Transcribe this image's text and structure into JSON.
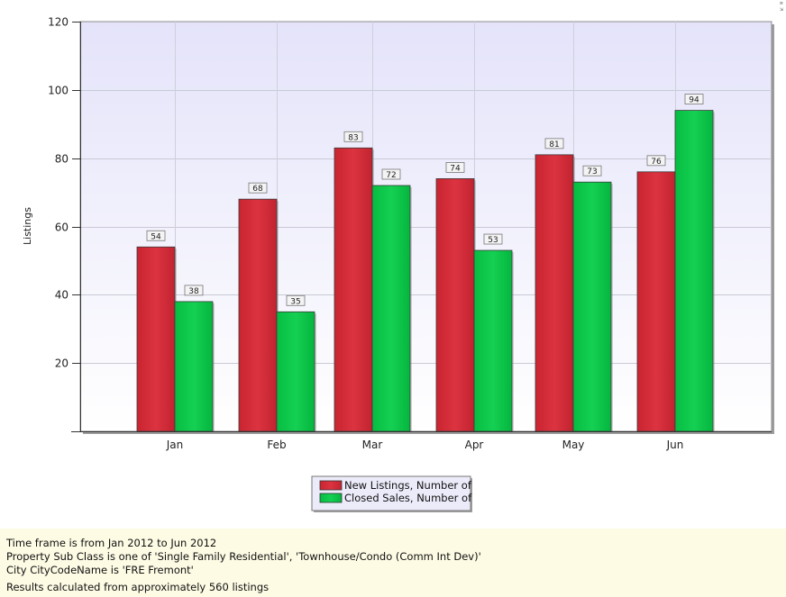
{
  "chart_data": {
    "type": "bar",
    "title": "",
    "xlabel": "",
    "ylabel": "Listings",
    "ylim": [
      0,
      120
    ],
    "yticks": [
      20,
      40,
      60,
      80,
      100,
      120
    ],
    "categories": [
      "Jan",
      "Feb",
      "Mar",
      "Apr",
      "May",
      "Jun"
    ],
    "series": [
      {
        "name": "New Listings, Number of",
        "color": "#d12a36",
        "values": [
          54,
          68,
          83,
          74,
          81,
          76
        ]
      },
      {
        "name": "Closed Sales, Number of",
        "color": "#0ac548",
        "values": [
          38,
          35,
          72,
          53,
          73,
          94
        ]
      }
    ],
    "grid": true,
    "legend_position": "bottom-center",
    "plot_background": "#e9e8fb"
  },
  "footer": {
    "lines": [
      "Time frame is from Jan 2012 to Jun 2012",
      "Property Sub Class is one of 'Single Family Residential', 'Townhouse/Condo (Comm Int Dev)'",
      "City CityCodeName is 'FRE Fremont'",
      "Results calculated from approximately 560 listings"
    ]
  }
}
